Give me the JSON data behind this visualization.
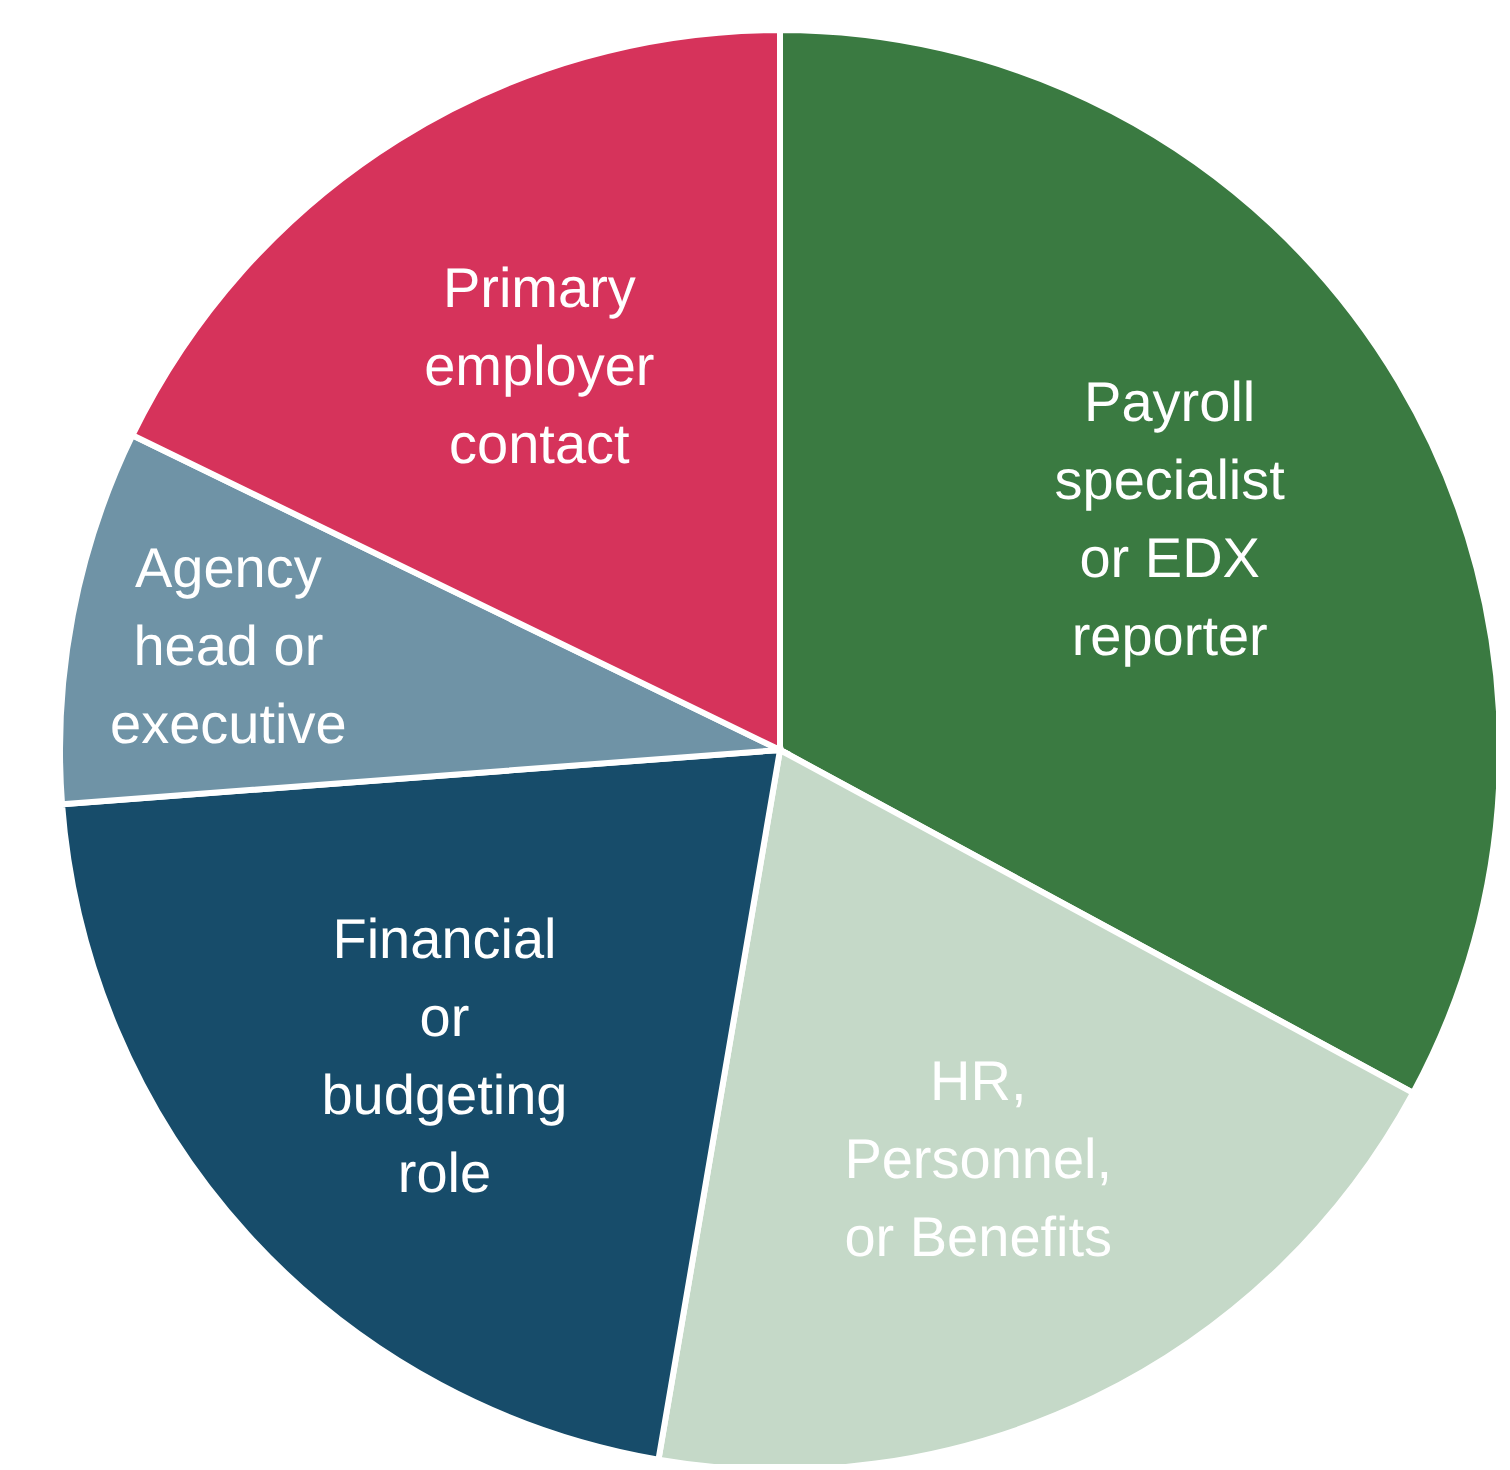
{
  "chart_data": {
    "type": "pie",
    "categories": [
      "Payroll specialist or EDX reporter",
      "HR, Personnel, or Benefits",
      "Financial or budgeting role",
      "Agency head or executive",
      "Primary employer contact"
    ],
    "values": [
      32.9,
      19.8,
      21.1,
      8.4,
      17.8
    ],
    "colors": [
      "#3a7a41",
      "#c5d9c8",
      "#174c6a",
      "#6f93a6",
      "#d6335b"
    ]
  }
}
